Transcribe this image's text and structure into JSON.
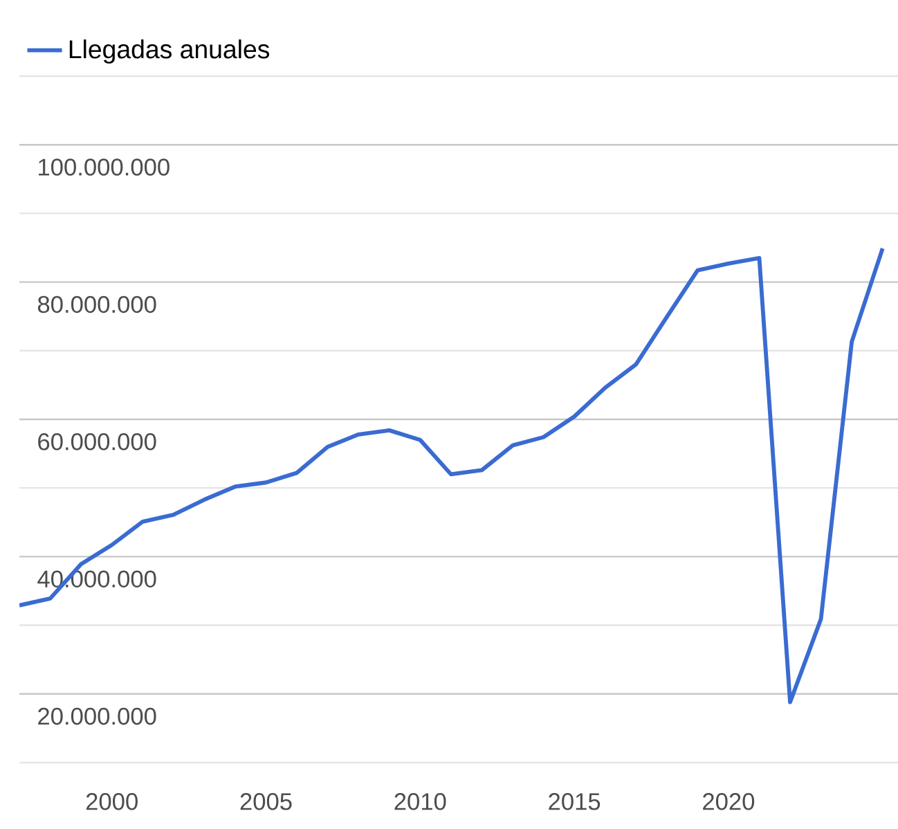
{
  "chart_data": {
    "type": "line",
    "x": [
      1997,
      1998,
      1999,
      2000,
      2001,
      2002,
      2003,
      2004,
      2005,
      2006,
      2007,
      2008,
      2009,
      2010,
      2011,
      2012,
      2013,
      2014,
      2015,
      2016,
      2017,
      2018,
      2019,
      2020,
      2021,
      2022,
      2023,
      2024,
      2025
    ],
    "series": [
      {
        "name": "Llegadas anuales",
        "color": "#3a6bd1",
        "values": [
          32900000,
          33900000,
          38900000,
          41700000,
          45100000,
          46100000,
          48300000,
          50200000,
          50800000,
          52200000,
          56000000,
          57800000,
          58400000,
          57000000,
          52000000,
          52600000,
          56200000,
          57400000,
          60400000,
          64600000,
          68000000,
          74900000,
          81700000,
          82700000,
          83500000,
          18800000,
          30900000,
          71300000,
          84900000
        ]
      }
    ],
    "xlim": [
      1997,
      2025.5
    ],
    "ylim": [
      10000000,
      110000000
    ],
    "xticks": [
      2000,
      2005,
      2010,
      2015,
      2020
    ],
    "yticks": [
      {
        "value": 10000000,
        "label": null
      },
      {
        "value": 20000000,
        "label": "20.000.000"
      },
      {
        "value": 30000000,
        "label": null
      },
      {
        "value": 40000000,
        "label": "40.000.000"
      },
      {
        "value": 50000000,
        "label": null
      },
      {
        "value": 60000000,
        "label": "60.000.000"
      },
      {
        "value": 70000000,
        "label": null
      },
      {
        "value": 80000000,
        "label": "80.000.000"
      },
      {
        "value": 90000000,
        "label": null
      },
      {
        "value": 100000000,
        "label": "100.000.000"
      },
      {
        "value": 110000000,
        "label": null
      }
    ],
    "grid": "y",
    "legend": "top left",
    "marker": "none",
    "line_style": "solid"
  }
}
